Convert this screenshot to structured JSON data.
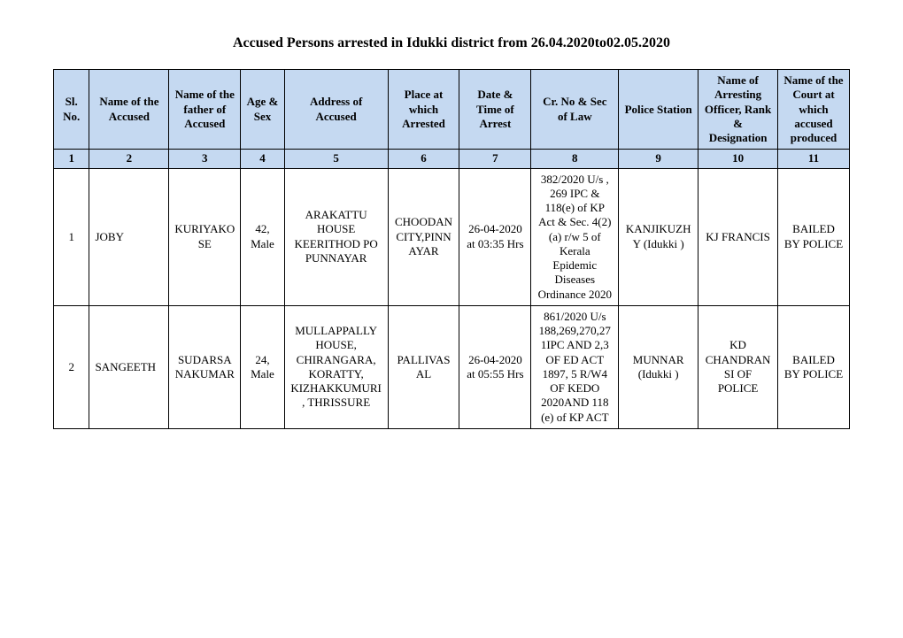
{
  "title": "Accused Persons arrested in    Idukki    district from   26.04.2020to02.05.2020",
  "header_bg": "#c5d9f1",
  "columns": [
    {
      "label": "Sl. No.",
      "num": "1"
    },
    {
      "label": "Name of the Accused",
      "num": "2"
    },
    {
      "label": "Name of the father of Accused",
      "num": "3"
    },
    {
      "label": "Age & Sex",
      "num": "4"
    },
    {
      "label": "Address of Accused",
      "num": "5"
    },
    {
      "label": "Place at which Arrested",
      "num": "6"
    },
    {
      "label": "Date & Time of Arrest",
      "num": "7"
    },
    {
      "label": "Cr. No & Sec of Law",
      "num": "8"
    },
    {
      "label": "Police Station",
      "num": "9"
    },
    {
      "label": "Name of Arresting Officer, Rank & Designation",
      "num": "10"
    },
    {
      "label": "Name of the Court at which accused produced",
      "num": "11"
    }
  ],
  "rows": [
    {
      "sl": "1",
      "name": "JOBY",
      "father": "KURIYAKOSE",
      "age_sex": "42, Male",
      "address": "ARAKATTU HOUSE KEERITHOD PO PUNNAYAR",
      "place": "CHOODAN CITY,PINNAYAR",
      "datetime": "26-04-2020 at 03:35 Hrs",
      "cr": "382/2020 U/s , 269 IPC & 118(e) of KP Act & Sec. 4(2)(a) r/w 5 of Kerala Epidemic Diseases Ordinance 2020",
      "station": "KANJIKUZHY (Idukki )",
      "officer": "KJ FRANCIS",
      "court": "BAILED BY POLICE"
    },
    {
      "sl": "2",
      "name": "SANGEETH",
      "father": "SUDARSANAKUMAR",
      "age_sex": "24, Male",
      "address": "MULLAPPALLY HOUSE, CHIRANGARA, KORATTY, KIZHAKKUMURI, THRISSURE",
      "place": "PALLIVASAL",
      "datetime": "26-04-2020 at 05:55 Hrs",
      "cr": "861/2020 U/s 188,269,270,271IPC AND 2,3 OF ED ACT 1897, 5 R/W4 OF KEDO 2020AND 118 (e) of KP ACT",
      "station": "MUNNAR (Idukki )",
      "officer": "KD CHANDRAN SI OF POLICE",
      "court": "BAILED BY POLICE"
    }
  ]
}
